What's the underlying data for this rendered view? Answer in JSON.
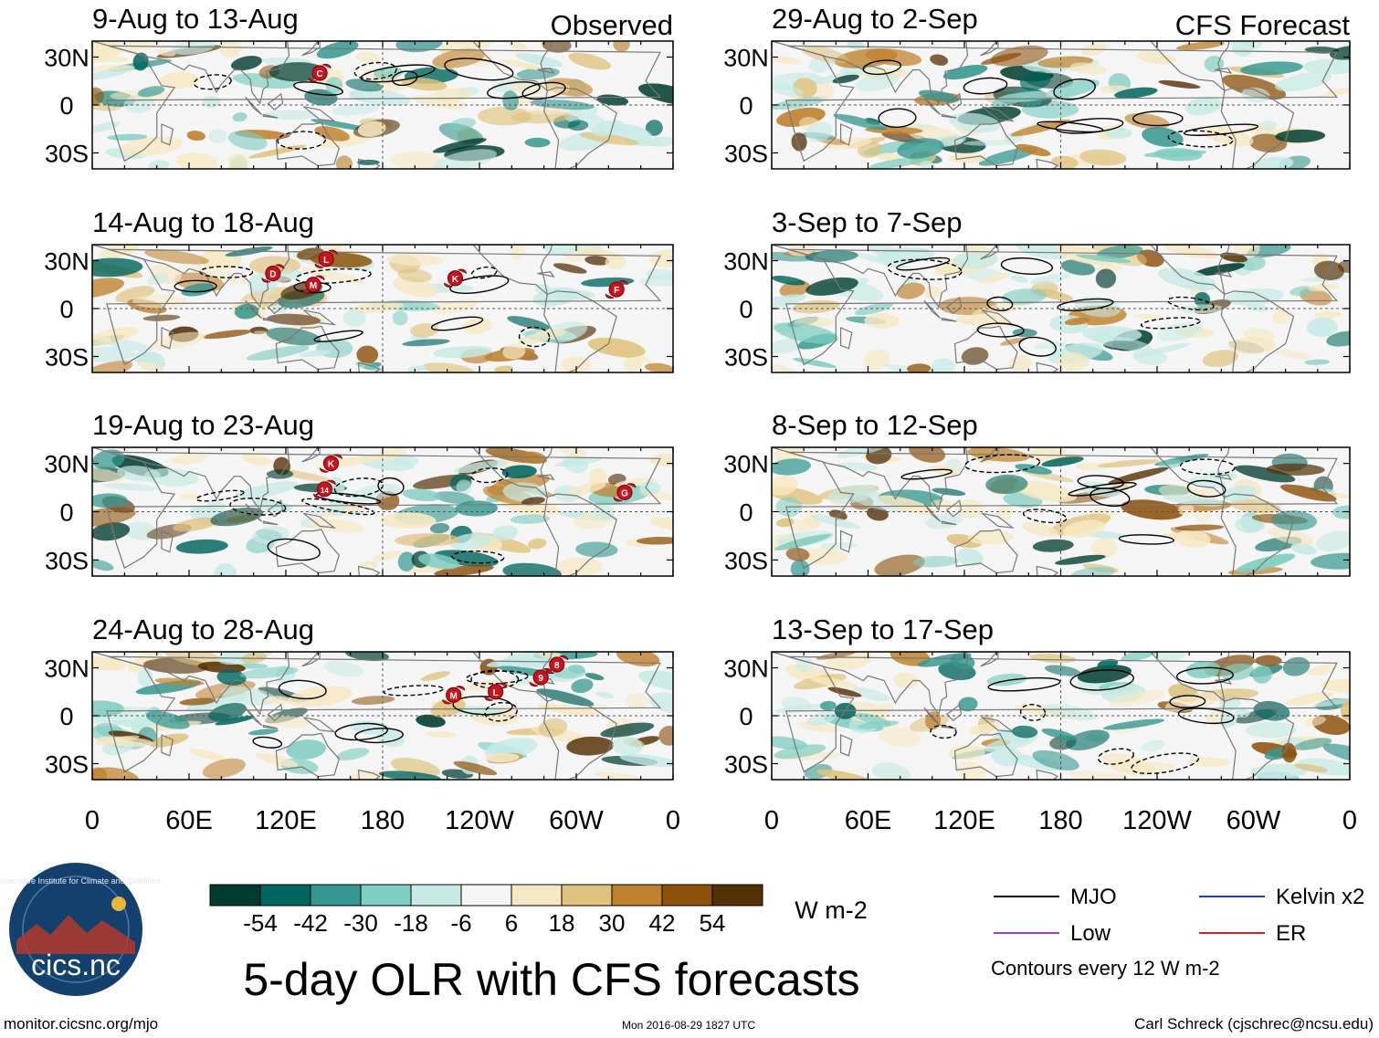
{
  "chart_data": {
    "type": "heatmap",
    "title": "5-day OLR with CFS forecasts",
    "observed_label": "Observed",
    "forecast_label": "CFS Forecast",
    "observed_panels": [
      {
        "title": "9-Aug to 13-Aug",
        "storms": [
          {
            "label": "C",
            "lon": 141,
            "lat": 20
          }
        ]
      },
      {
        "title": "14-Aug to 18-Aug",
        "storms": [
          {
            "label": "L",
            "lon": 145,
            "lat": 31
          },
          {
            "label": "D",
            "lon": 112,
            "lat": 22
          },
          {
            "label": "M",
            "lon": 137,
            "lat": 15
          },
          {
            "label": "K",
            "lon": 225,
            "lat": 19
          },
          {
            "label": "F",
            "lon": 325,
            "lat": 12
          }
        ]
      },
      {
        "title": "19-Aug to 23-Aug",
        "storms": [
          {
            "label": "K",
            "lon": 148,
            "lat": 30
          },
          {
            "label": "14",
            "lon": 144,
            "lat": 14
          },
          {
            "label": "G",
            "lon": 330,
            "lat": 12
          }
        ]
      },
      {
        "title": "24-Aug to 28-Aug",
        "storms": [
          {
            "label": "M",
            "lon": 224,
            "lat": 13
          },
          {
            "label": "L",
            "lon": 250,
            "lat": 15
          },
          {
            "label": "9",
            "lon": 278,
            "lat": 24
          },
          {
            "label": "8",
            "lon": 288,
            "lat": 32
          }
        ]
      }
    ],
    "forecast_panels": [
      {
        "title": "29-Aug to 2-Sep"
      },
      {
        "title": "3-Sep to 7-Sep"
      },
      {
        "title": "8-Sep to 12-Sep"
      },
      {
        "title": "13-Sep to 17-Sep"
      }
    ],
    "x_ticks": [
      "0",
      "60E",
      "120E",
      "180",
      "120W",
      "60W",
      "0"
    ],
    "x_tick_lons": [
      0,
      60,
      120,
      180,
      240,
      300,
      360
    ],
    "y_ticks": [
      "30N",
      "0",
      "30S"
    ],
    "y_tick_lats": [
      30,
      0,
      -30
    ],
    "xlim": [
      0,
      360
    ],
    "ylim": [
      -40,
      40
    ],
    "colorbar": {
      "ticks": [
        "-54",
        "-42",
        "-30",
        "-18",
        "-6",
        "6",
        "18",
        "30",
        "42",
        "54"
      ],
      "colors": [
        "#003c30",
        "#01665e",
        "#35978f",
        "#80cdc1",
        "#c7eae5",
        "#f5f5f5",
        "#f6e8c3",
        "#dfc27d",
        "#bf812d",
        "#8c510a",
        "#543005"
      ],
      "units": "W m-2"
    },
    "legend": {
      "entries": [
        {
          "label": "MJO",
          "color": "#000000"
        },
        {
          "label": "Kelvin x2",
          "color": "#1f3fbf"
        },
        {
          "label": "Low",
          "color": "#9b40d0"
        },
        {
          "label": "ER",
          "color": "#d62020"
        }
      ],
      "note": "Contours every 12 W m-2"
    }
  },
  "footer": {
    "logo_text": "cics.nc",
    "logo_ring": "Cooperative Institute for Climate and Satellites",
    "left": "monitor.cicsnc.org/mjo",
    "center": "Mon 2016-08-29 1827 UTC",
    "right": "Carl Schreck (cjschrec@ncsu.edu)"
  }
}
